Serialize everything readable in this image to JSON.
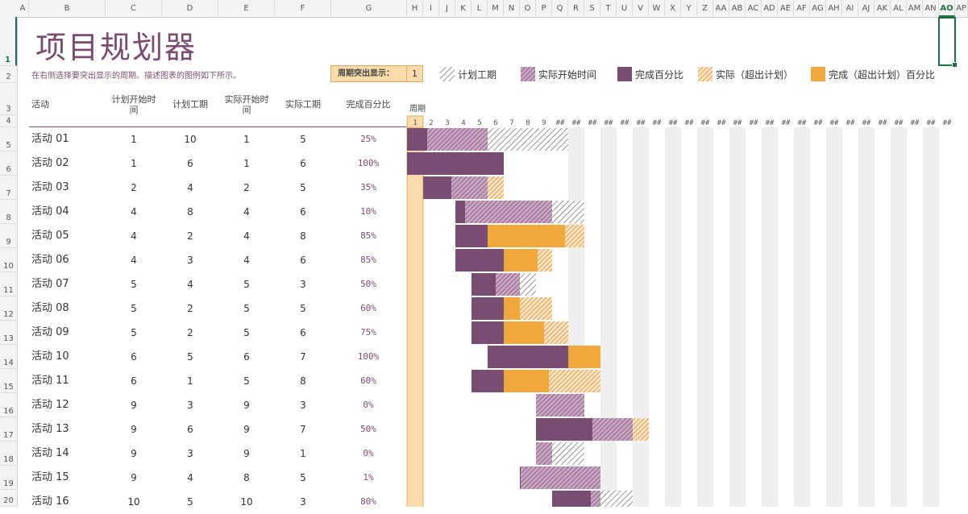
{
  "sheet": {
    "columns": [
      "A",
      "B",
      "C",
      "D",
      "E",
      "F",
      "G",
      "H",
      "I",
      "J",
      "K",
      "L",
      "M",
      "N",
      "O",
      "P",
      "Q",
      "R",
      "S",
      "T",
      "U",
      "V",
      "W",
      "X",
      "Y",
      "Z",
      "AA",
      "AB",
      "AC",
      "AD",
      "AE",
      "AF",
      "AG",
      "AH",
      "AI",
      "AJ",
      "AK",
      "AL",
      "AM",
      "AN",
      "AO",
      "AP"
    ],
    "selected_column": "AO",
    "rows": [
      "1",
      "2",
      "3",
      "4",
      "5",
      "6",
      "7",
      "8",
      "9",
      "10",
      "11",
      "12",
      "13",
      "14",
      "15",
      "16",
      "17",
      "18",
      "19",
      "20"
    ],
    "selected_row": "1"
  },
  "title": "项目规划器",
  "subtitle": "在右侧选择要突出显示的周期。描述图表的图例如下所示。",
  "highlight": {
    "label": "周期突出显示：",
    "value": "1"
  },
  "legend": [
    {
      "label": "计划工期",
      "icon": "hatch-plan"
    },
    {
      "label": "实际开始时间",
      "icon": "hatch-actual"
    },
    {
      "label": "完成百分比",
      "icon": "solid-complete"
    },
    {
      "label": "实际（超出计划）",
      "icon": "hatch-overrun"
    },
    {
      "label": "完成（超出计划）百分比",
      "icon": "solid-overrun-complete"
    }
  ],
  "headers": {
    "activity": "活动",
    "plan_start_l1": "计划开始时",
    "plan_start_l2": "间",
    "plan_duration": "计划工期",
    "actual_start_l1": "实际开始时",
    "actual_start_l2": "间",
    "actual_duration": "实际工期",
    "percent_complete": "完成百分比",
    "period": "周期"
  },
  "period_labels": [
    "1",
    "2",
    "3",
    "4",
    "5",
    "6",
    "7",
    "8",
    "9",
    "##",
    "##",
    "##",
    "##",
    "##",
    "##",
    "##",
    "##",
    "##",
    "##",
    "##",
    "##",
    "##",
    "##",
    "##",
    "##",
    "##",
    "##",
    "##",
    "##",
    "##",
    "##",
    "##",
    "##",
    "##"
  ],
  "activities": [
    {
      "name": "活动 01",
      "plan_start": "1",
      "plan_duration": "10",
      "actual_start": "1",
      "actual_duration": "5",
      "percent": "25%",
      "pct": 0.25
    },
    {
      "name": "活动 02",
      "plan_start": "1",
      "plan_duration": "6",
      "actual_start": "1",
      "actual_duration": "6",
      "percent": "100%",
      "pct": 1.0
    },
    {
      "name": "活动 03",
      "plan_start": "2",
      "plan_duration": "4",
      "actual_start": "2",
      "actual_duration": "5",
      "percent": "35%",
      "pct": 0.35
    },
    {
      "name": "活动 04",
      "plan_start": "4",
      "plan_duration": "8",
      "actual_start": "4",
      "actual_duration": "6",
      "percent": "10%",
      "pct": 0.1
    },
    {
      "name": "活动 05",
      "plan_start": "4",
      "plan_duration": "2",
      "actual_start": "4",
      "actual_duration": "8",
      "percent": "85%",
      "pct": 0.85
    },
    {
      "name": "活动 06",
      "plan_start": "4",
      "plan_duration": "3",
      "actual_start": "4",
      "actual_duration": "6",
      "percent": "85%",
      "pct": 0.85
    },
    {
      "name": "活动 07",
      "plan_start": "5",
      "plan_duration": "4",
      "actual_start": "5",
      "actual_duration": "3",
      "percent": "50%",
      "pct": 0.5
    },
    {
      "name": "活动 08",
      "plan_start": "5",
      "plan_duration": "2",
      "actual_start": "5",
      "actual_duration": "5",
      "percent": "60%",
      "pct": 0.6
    },
    {
      "name": "活动 09",
      "plan_start": "5",
      "plan_duration": "2",
      "actual_start": "5",
      "actual_duration": "6",
      "percent": "75%",
      "pct": 0.75
    },
    {
      "name": "活动 10",
      "plan_start": "6",
      "plan_duration": "5",
      "actual_start": "6",
      "actual_duration": "7",
      "percent": "100%",
      "pct": 1.0
    },
    {
      "name": "活动 11",
      "plan_start": "6",
      "plan_duration": "1",
      "actual_start": "5",
      "actual_duration": "8",
      "percent": "60%",
      "pct": 0.6
    },
    {
      "name": "活动 12",
      "plan_start": "9",
      "plan_duration": "3",
      "actual_start": "9",
      "actual_duration": "3",
      "percent": "0%",
      "pct": 0.0
    },
    {
      "name": "活动 13",
      "plan_start": "9",
      "plan_duration": "6",
      "actual_start": "9",
      "actual_duration": "7",
      "percent": "50%",
      "pct": 0.5
    },
    {
      "name": "活动 14",
      "plan_start": "9",
      "plan_duration": "3",
      "actual_start": "9",
      "actual_duration": "1",
      "percent": "0%",
      "pct": 0.0
    },
    {
      "name": "活动 15",
      "plan_start": "9",
      "plan_duration": "4",
      "actual_start": "8",
      "actual_duration": "5",
      "percent": "1%",
      "pct": 0.01
    },
    {
      "name": "活动 16",
      "plan_start": "10",
      "plan_duration": "5",
      "actual_start": "10",
      "actual_duration": "3",
      "percent": "80%",
      "pct": 0.8
    }
  ],
  "colors": {
    "purple": "#7a4c72",
    "orange": "#f0a83c",
    "highlight_fill": "#fadcac",
    "highlight_border": "#e3a860",
    "stripe": "#efefef",
    "selection": "#1e7145"
  }
}
